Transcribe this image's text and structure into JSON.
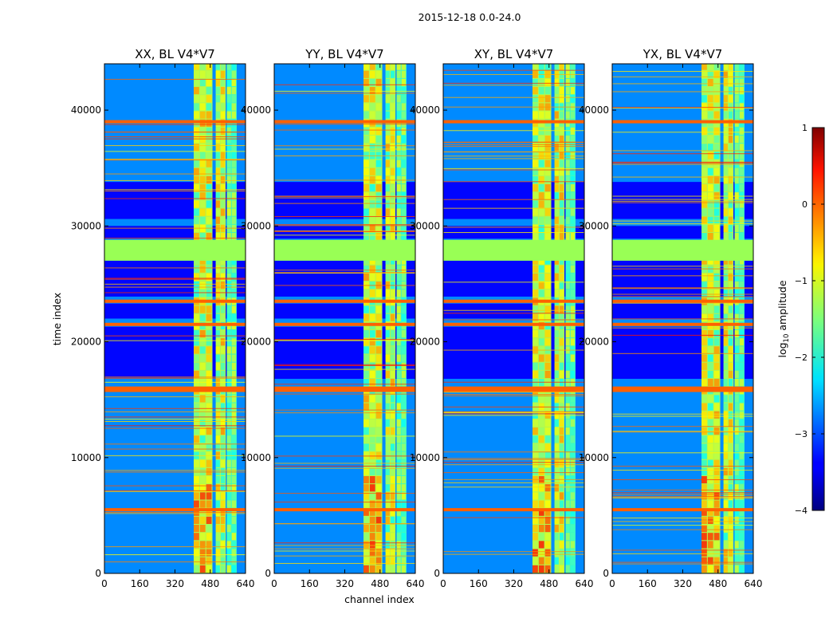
{
  "chart_data": {
    "type": "heatmap",
    "suptitle": "2015-12-18 0.0-24.0",
    "xlabel": "channel index",
    "ylabel": "time index",
    "x_range": [
      0,
      640
    ],
    "y_range": [
      0,
      44000
    ],
    "x_ticks": [
      "0",
      "160",
      "320",
      "480",
      "640"
    ],
    "y_ticks": [
      "0",
      "10000",
      "20000",
      "30000",
      "40000"
    ],
    "x_tick_values": [
      0,
      160,
      320,
      480,
      640
    ],
    "y_tick_values": [
      0,
      10000,
      20000,
      30000,
      40000
    ],
    "panels": [
      {
        "title": "XX, BL V4*V7"
      },
      {
        "title": "YY, BL V4*V7"
      },
      {
        "title": "XY, BL V4*V7"
      },
      {
        "title": "YX, BL V4*V7"
      }
    ],
    "colorbar": {
      "label_prefix": "log",
      "label_sub": "10",
      "label_suffix": " amplitude",
      "range": [
        -4,
        1
      ],
      "ticks": [
        "1",
        "0",
        "−1",
        "−2",
        "−3",
        "−4"
      ],
      "tick_values": [
        1,
        0,
        -1,
        -2,
        -3,
        -4
      ],
      "colormap": "jet"
    },
    "flagged_time_block": [
      27000,
      28800
    ],
    "flag_color": "#99ff55",
    "strong_channel_bands": [
      {
        "from": 405,
        "to": 490
      },
      {
        "from": 505,
        "to": 550
      },
      {
        "from": 555,
        "to": 600
      }
    ],
    "rfi_time_rows": [
      39000,
      16000,
      15800,
      5500,
      21500,
      23500
    ]
  }
}
